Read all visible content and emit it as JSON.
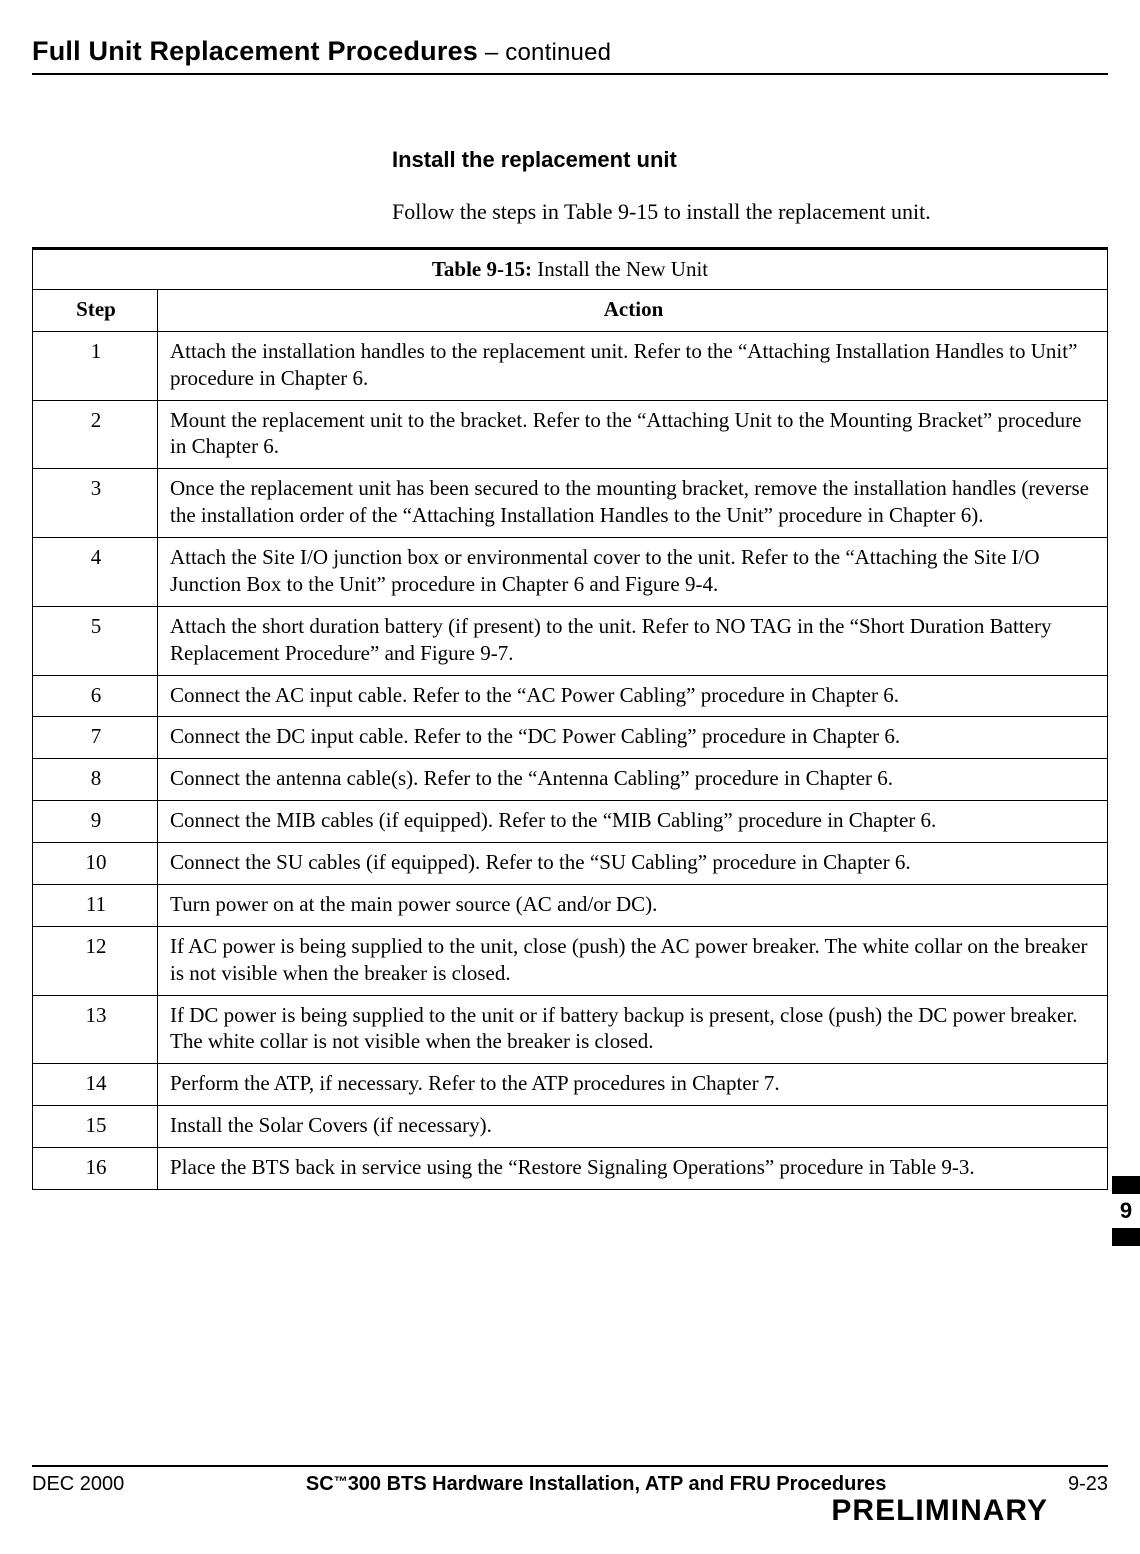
{
  "header": {
    "title": "Full Unit Replacement Procedures",
    "continued": " – continued"
  },
  "section": {
    "heading": "Install the replacement unit",
    "intro": "Follow the steps in Table 9-15 to install the replacement unit."
  },
  "table": {
    "caption_label": "Table 9-15:",
    "caption_text": " Install the New Unit",
    "columns": {
      "step": "Step",
      "action": "Action"
    },
    "rows": [
      {
        "step": "1",
        "action": "Attach the installation handles to the replacement unit.  Refer to the “Attaching Installation Handles to Unit” procedure in Chapter 6."
      },
      {
        "step": "2",
        "action": "Mount the replacement unit to the bracket.  Refer to the “Attaching Unit to the Mounting Bracket” procedure in Chapter 6."
      },
      {
        "step": "3",
        "action": "Once the replacement unit has been secured to the mounting bracket, remove the installation handles (reverse the installation order of the “Attaching Installation Handles to the Unit” procedure in Chapter 6)."
      },
      {
        "step": "4",
        "action": "Attach the Site I/O junction box or environmental cover to the unit.  Refer to the “Attaching the Site I/O Junction Box to the Unit” procedure in Chapter 6 and Figure 9-4."
      },
      {
        "step": "5",
        "action": "Attach the short duration battery (if present) to the unit.  Refer to NO TAG in the “Short Duration Battery Replacement Procedure” and Figure 9-7."
      },
      {
        "step": "6",
        "action": "Connect the AC input cable.  Refer to the “AC Power Cabling” procedure in Chapter 6."
      },
      {
        "step": "7",
        "action": "Connect the DC input cable.  Refer to the “DC Power Cabling” procedure in Chapter 6."
      },
      {
        "step": "8",
        "action": "Connect the antenna cable(s).  Refer to the “Antenna Cabling” procedure in Chapter 6."
      },
      {
        "step": "9",
        "action": "Connect the MIB cables (if equipped).  Refer to the “MIB Cabling” procedure in Chapter 6."
      },
      {
        "step": "10",
        "action": "Connect the SU cables (if equipped).  Refer to the “SU Cabling” procedure in Chapter 6."
      },
      {
        "step": "11",
        "action": "Turn power on at the main power source (AC and/or DC)."
      },
      {
        "step": "12",
        "action": "If AC power is being supplied to the unit, close (push) the AC power breaker.  The white collar on the breaker is not visible when the breaker is closed."
      },
      {
        "step": "13",
        "action": "If DC power is being supplied to the unit or if battery backup is present, close (push) the DC power breaker.  The white collar is not visible when the breaker is closed."
      },
      {
        "step": "14",
        "action": "Perform the ATP, if necessary.  Refer to the ATP procedures in Chapter 7."
      },
      {
        "step": "15",
        "action": "Install the Solar Covers (if necessary)."
      },
      {
        "step": "16",
        "action": "Place the BTS back in service using the “Restore Signaling Operations” procedure in Table 9-3."
      }
    ]
  },
  "tab": {
    "chapter": "9"
  },
  "footer": {
    "left": "DEC 2000",
    "center_prefix": "SC",
    "center_tm": "™",
    "center_rest": "300 BTS Hardware Installation, ATP and FRU Procedures",
    "preliminary": "PRELIMINARY",
    "right": "9-23"
  }
}
